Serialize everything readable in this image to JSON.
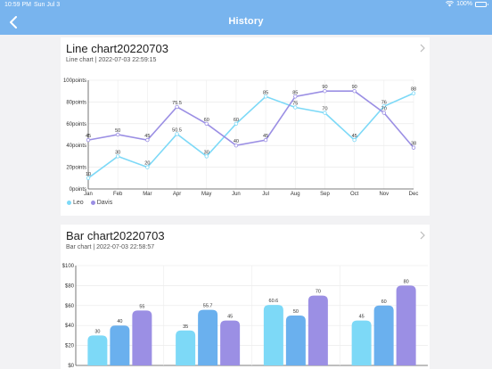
{
  "status_bar": {
    "time": "10:59 PM",
    "date": "Sun Jul 3",
    "battery": "100%"
  },
  "nav": {
    "title": "History",
    "back_icon": "chevron-left-icon"
  },
  "colors": {
    "accent": "#78b4ee",
    "leo": "#7dd9f7",
    "davis": "#9b8fe4",
    "bar_blue": "#6ab0ee"
  },
  "cards": [
    {
      "title": "Line chart20220703",
      "subtitle": "Line chart | 2022-07-03 22:59:15",
      "chart_data": {
        "type": "line",
        "categories": [
          "Jan",
          "Feb",
          "Mar",
          "Apr",
          "May",
          "Jun",
          "Jul",
          "Aug",
          "Sep",
          "Oct",
          "Nov",
          "Dec"
        ],
        "yticks": [
          "0points",
          "20points",
          "40points",
          "60points",
          "80points",
          "100points"
        ],
        "ylim": [
          0,
          100
        ],
        "series": [
          {
            "name": "Leo",
            "color": "#7dd9f7",
            "values": [
              10,
              30,
              20,
              50.5,
              30,
              60,
              85,
              75,
              70,
              45,
              76,
              88
            ]
          },
          {
            "name": "Davis",
            "color": "#9b8fe4",
            "values": [
              45,
              50,
              45,
              75.5,
              60,
              40,
              45,
              85,
              90,
              90,
              70,
              38
            ]
          }
        ],
        "legend": "bottom-left"
      }
    },
    {
      "title": "Bar chart20220703",
      "subtitle": "Bar chart | 2022-07-03 22:58:57",
      "chart_data": {
        "type": "bar",
        "yticks": [
          "$0",
          "$20",
          "$40",
          "$60",
          "$80",
          "$100"
        ],
        "ylim": [
          0,
          100
        ],
        "groups": [
          {
            "values": [
              30,
              40,
              55
            ]
          },
          {
            "values": [
              35,
              55.7,
              45
            ]
          },
          {
            "values": [
              60.6,
              50,
              70
            ]
          },
          {
            "values": [
              45,
              60,
              80
            ]
          }
        ],
        "series_colors": [
          "#7dd9f7",
          "#6ab0ee",
          "#9b8fe4"
        ]
      }
    }
  ]
}
